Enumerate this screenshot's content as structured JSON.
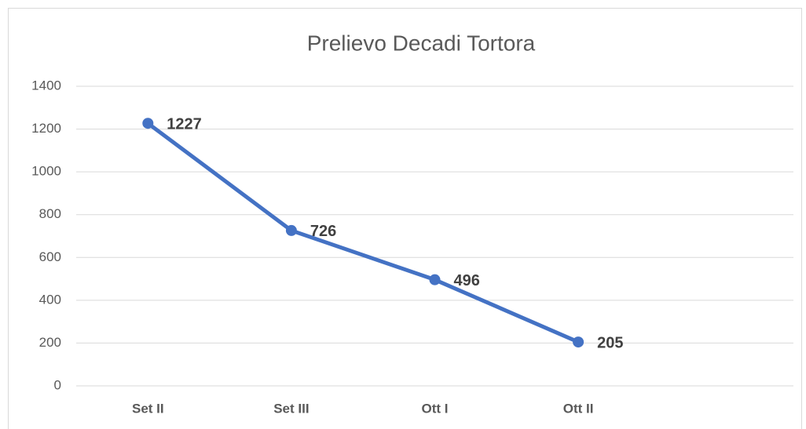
{
  "chart_data": {
    "type": "line",
    "title": "Prelievo Decadi Tortora",
    "categories": [
      "Set II",
      "Set III",
      "Ott I",
      "Ott II",
      null
    ],
    "values": [
      1227,
      726,
      496,
      205,
      null
    ],
    "color": "#4472c4",
    "ylim": [
      0,
      1400
    ],
    "yticks": [
      0,
      200,
      400,
      600,
      800,
      1000,
      1200,
      1400
    ],
    "grid": true
  }
}
